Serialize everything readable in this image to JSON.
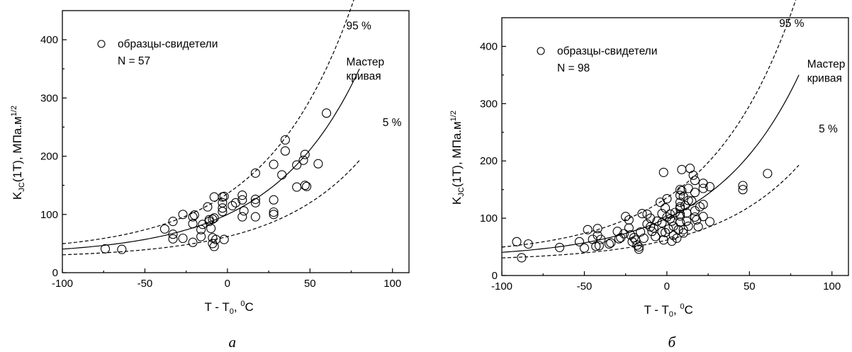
{
  "chart_data": [
    {
      "type": "scatter",
      "caption": "а",
      "xlabel": "T - T",
      "xlabel_sub": "0",
      "xlabel_unit_sup": "0",
      "xlabel_unit": "C",
      "ylabel": "K",
      "ylabel_sub": "JC",
      "ylabel_rest": "(1T), МПа.м",
      "ylabel_sup": "1/2",
      "xlim": [
        -100,
        110
      ],
      "ylim": [
        0,
        450
      ],
      "xticks": [
        -100,
        -50,
        0,
        50,
        100
      ],
      "yticks": [
        0,
        100,
        200,
        300,
        400
      ],
      "legend": {
        "marker": "circle",
        "label": "образцы-свидетели",
        "count_text": "N = 57"
      },
      "curve_labels": {
        "upper": "95 %",
        "master_line1": "Мастер",
        "master_line2": "кривая",
        "lower": "5 %"
      },
      "curves": {
        "x_range": [
          -100,
          80
        ],
        "master_label_at": [
          72,
          356
        ],
        "upper_label_at": [
          72,
          418
        ],
        "lower_label_at": [
          94,
          252
        ]
      },
      "points": [
        [
          -74,
          41
        ],
        [
          -64,
          40
        ],
        [
          -38,
          75
        ],
        [
          -33,
          88
        ],
        [
          -33,
          66
        ],
        [
          -33,
          58
        ],
        [
          -27,
          100
        ],
        [
          -27,
          59
        ],
        [
          -21,
          96
        ],
        [
          -21,
          84
        ],
        [
          -21,
          52
        ],
        [
          -16,
          62
        ],
        [
          -16,
          74
        ],
        [
          -15,
          83
        ],
        [
          -12,
          113
        ],
        [
          -11,
          88
        ],
        [
          -11,
          91
        ],
        [
          -10,
          76
        ],
        [
          -9,
          50
        ],
        [
          -9,
          60
        ],
        [
          -8,
          130
        ],
        [
          -8,
          94
        ],
        [
          -8,
          45
        ],
        [
          -7,
          57
        ],
        [
          -3,
          130
        ],
        [
          -3,
          120
        ],
        [
          -3,
          111
        ],
        [
          -3,
          105
        ],
        [
          -2,
          57
        ],
        [
          -2,
          131
        ],
        [
          5,
          120
        ],
        [
          9,
          133
        ],
        [
          9,
          125
        ],
        [
          9,
          96
        ],
        [
          10,
          106
        ],
        [
          17,
          171
        ],
        [
          17,
          126
        ],
        [
          17,
          120
        ],
        [
          17,
          96
        ],
        [
          28,
          186
        ],
        [
          28,
          125
        ],
        [
          28,
          104
        ],
        [
          28,
          100
        ],
        [
          33,
          168
        ],
        [
          35,
          228
        ],
        [
          35,
          209
        ],
        [
          42,
          185
        ],
        [
          42,
          147
        ],
        [
          46,
          193
        ],
        [
          47,
          203
        ],
        [
          47,
          150
        ],
        [
          48,
          148
        ],
        [
          55,
          187
        ],
        [
          60,
          274
        ],
        [
          -20,
          99
        ],
        [
          -9,
          92
        ],
        [
          3,
          115
        ]
      ]
    },
    {
      "type": "scatter",
      "caption": "б",
      "xlabel": "T - T",
      "xlabel_sub": "0",
      "xlabel_unit_sup": "0",
      "xlabel_unit": "C",
      "ylabel": "K",
      "ylabel_sub": "JC",
      "ylabel_rest": "(1T), МПа.м",
      "ylabel_sup": "1/2",
      "xlim": [
        -100,
        110
      ],
      "ylim": [
        0,
        450
      ],
      "xticks": [
        -100,
        -50,
        0,
        50,
        100
      ],
      "yticks": [
        0,
        100,
        200,
        300,
        400
      ],
      "legend": {
        "marker": "circle",
        "label": "образцы-свидетели",
        "count_text": "N = 98"
      },
      "curve_labels": {
        "upper": "95 %",
        "master_line1": "Мастер",
        "master_line2": "кривая",
        "lower": "5 %"
      },
      "curves": {
        "x_range": [
          -100,
          80
        ],
        "master_label_at": [
          85,
          363
        ],
        "upper_label_at": [
          68,
          434
        ],
        "lower_label_at": [
          92,
          250
        ]
      },
      "points": [
        [
          -91,
          59
        ],
        [
          -88,
          31
        ],
        [
          -84,
          55
        ],
        [
          -65,
          49
        ],
        [
          -53,
          59
        ],
        [
          -50,
          48
        ],
        [
          -48,
          80
        ],
        [
          -45,
          63
        ],
        [
          -43,
          51
        ],
        [
          -42,
          82
        ],
        [
          -42,
          70
        ],
        [
          -41,
          52
        ],
        [
          -40,
          63
        ],
        [
          -34,
          57
        ],
        [
          -30,
          77
        ],
        [
          -29,
          64
        ],
        [
          -28,
          66
        ],
        [
          -25,
          103
        ],
        [
          -23,
          97
        ],
        [
          -23,
          83
        ],
        [
          -22,
          71
        ],
        [
          -21,
          59
        ],
        [
          -20,
          66
        ],
        [
          -18,
          53
        ],
        [
          -17,
          46
        ],
        [
          -17,
          50
        ],
        [
          -16,
          76
        ],
        [
          -15,
          108
        ],
        [
          -14,
          65
        ],
        [
          -12,
          107
        ],
        [
          -10,
          85
        ],
        [
          -9,
          77
        ],
        [
          -8,
          83
        ],
        [
          -4,
          128
        ],
        [
          -3,
          108
        ],
        [
          -3,
          92
        ],
        [
          -3,
          76
        ],
        [
          -2,
          180
        ],
        [
          -2,
          62
        ],
        [
          -1,
          118
        ],
        [
          0,
          134
        ],
        [
          0,
          102
        ],
        [
          1,
          81
        ],
        [
          2,
          107
        ],
        [
          2,
          99
        ],
        [
          3,
          95
        ],
        [
          4,
          86
        ],
        [
          4,
          70
        ],
        [
          7,
          80
        ],
        [
          8,
          150
        ],
        [
          8,
          140
        ],
        [
          8,
          128
        ],
        [
          8,
          120
        ],
        [
          8,
          117
        ],
        [
          8,
          107
        ],
        [
          8,
          104
        ],
        [
          8,
          93
        ],
        [
          9,
          185
        ],
        [
          9,
          148
        ],
        [
          10,
          80
        ],
        [
          10,
          74
        ],
        [
          11,
          122
        ],
        [
          12,
          109
        ],
        [
          13,
          152
        ],
        [
          13,
          131
        ],
        [
          13,
          86
        ],
        [
          14,
          187
        ],
        [
          16,
          175
        ],
        [
          17,
          166
        ],
        [
          17,
          145
        ],
        [
          17,
          113
        ],
        [
          17,
          102
        ],
        [
          18,
          97
        ],
        [
          19,
          85
        ],
        [
          22,
          161
        ],
        [
          22,
          152
        ],
        [
          22,
          124
        ],
        [
          22,
          103
        ],
        [
          26,
          155
        ],
        [
          26,
          94
        ],
        [
          46,
          157
        ],
        [
          46,
          150
        ],
        [
          61,
          178
        ],
        [
          -10,
          100
        ],
        [
          -6,
          95
        ],
        [
          -1,
          75
        ],
        [
          5,
          110
        ],
        [
          6,
          65
        ],
        [
          12,
          95
        ],
        [
          15,
          130
        ],
        [
          -35,
          55
        ],
        [
          -26,
          73
        ],
        [
          -19,
          62
        ],
        [
          -12,
          90
        ],
        [
          -7,
          68
        ],
        [
          3,
          60
        ],
        [
          10,
          138
        ],
        [
          20,
          120
        ]
      ]
    }
  ]
}
